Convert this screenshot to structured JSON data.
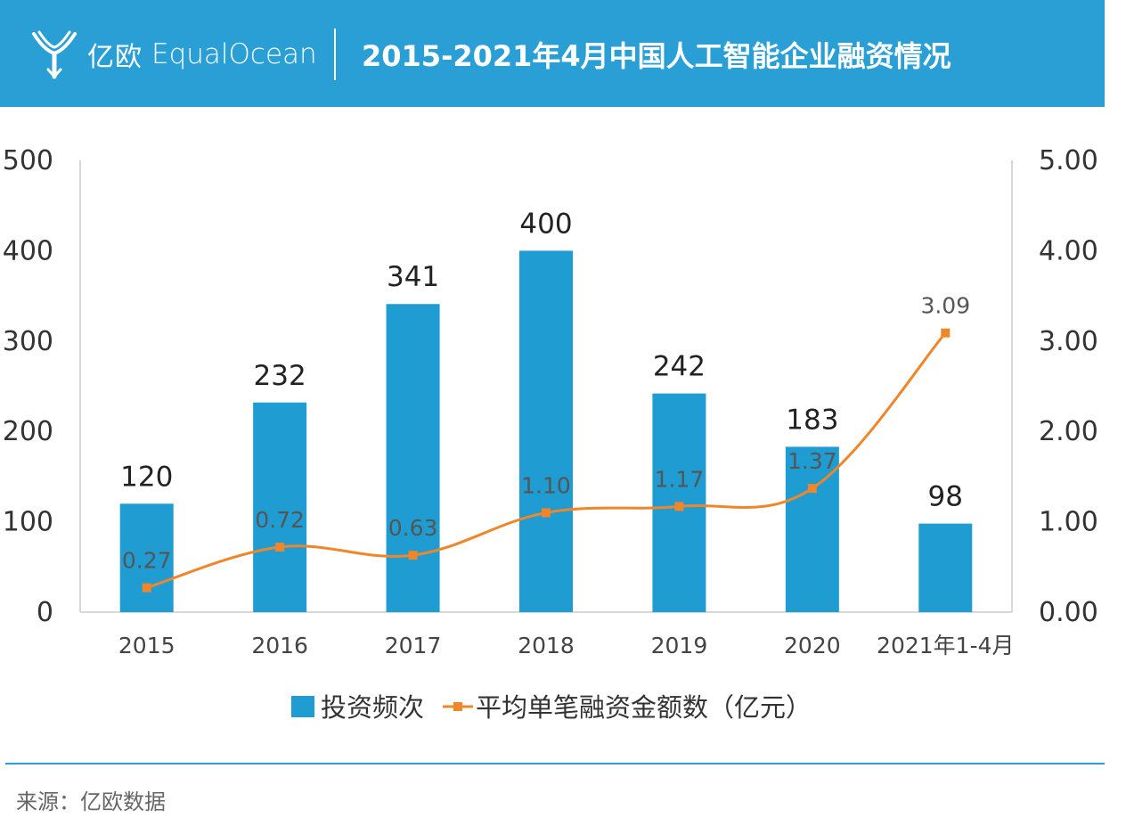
{
  "header": {
    "logo_cn": "亿欧",
    "logo_en": "EqualOcean",
    "title": "2015-2021年4月中国人工智能企业融资情况"
  },
  "source": "来源：亿欧数据",
  "colors": {
    "header": "#2a9fd6",
    "bar": "#1f9dd2",
    "line": "#f0862a"
  },
  "chart_data": {
    "type": "bar",
    "categories": [
      "2015",
      "2016",
      "2017",
      "2018",
      "2019",
      "2020",
      "2021年1-4月"
    ],
    "series": [
      {
        "name": "投资频次",
        "type": "bar",
        "axis": "left",
        "values": [
          120,
          232,
          341,
          400,
          242,
          183,
          98
        ],
        "labels": [
          "120",
          "232",
          "341",
          "400",
          "242",
          "183",
          "98"
        ]
      },
      {
        "name": "平均单笔融资金额数（亿元）",
        "type": "line",
        "axis": "right",
        "values": [
          0.27,
          0.72,
          0.63,
          1.1,
          1.17,
          1.37,
          3.09
        ],
        "labels": [
          "0.27",
          "0.72",
          "0.63",
          "1.10",
          "1.17",
          "1.37",
          "3.09"
        ]
      }
    ],
    "y_left": {
      "range": [
        0,
        500
      ],
      "ticks": [
        "0",
        "100",
        "200",
        "300",
        "400",
        "500"
      ]
    },
    "y_right": {
      "range": [
        0,
        5
      ],
      "ticks": [
        "0.00",
        "1.00",
        "2.00",
        "3.00",
        "4.00",
        "5.00"
      ]
    },
    "grid": false,
    "legend": "bottom"
  }
}
